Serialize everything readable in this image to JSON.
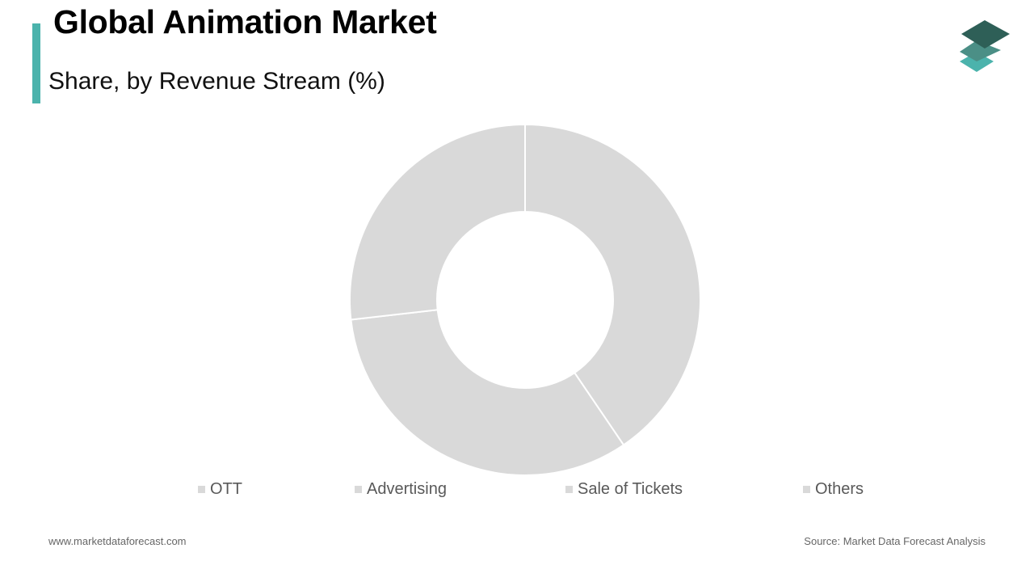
{
  "header": {
    "title": "Global Animation Market",
    "subtitle": "Share, by Revenue Stream (%)"
  },
  "colors": {
    "accent": "#4bb3ac",
    "slice": "#d9d9d9",
    "slice_border": "#ffffff",
    "logo_dark": "#2e5f57",
    "logo_mid": "#4b8f86",
    "logo_light": "#4bb3ac"
  },
  "logo": {
    "icon": "stacked-layers-icon"
  },
  "chart_data": {
    "type": "pie",
    "variant": "donut",
    "categories": [
      "OTT",
      "Advertising",
      "Sale of Tickets",
      "Others"
    ],
    "values": [
      40.5,
      32.7,
      26.8,
      0
    ],
    "legend_position": "bottom"
  },
  "footer": {
    "website": "www.marketdataforecast.com",
    "source": "Source: Market Data Forecast Analysis"
  }
}
